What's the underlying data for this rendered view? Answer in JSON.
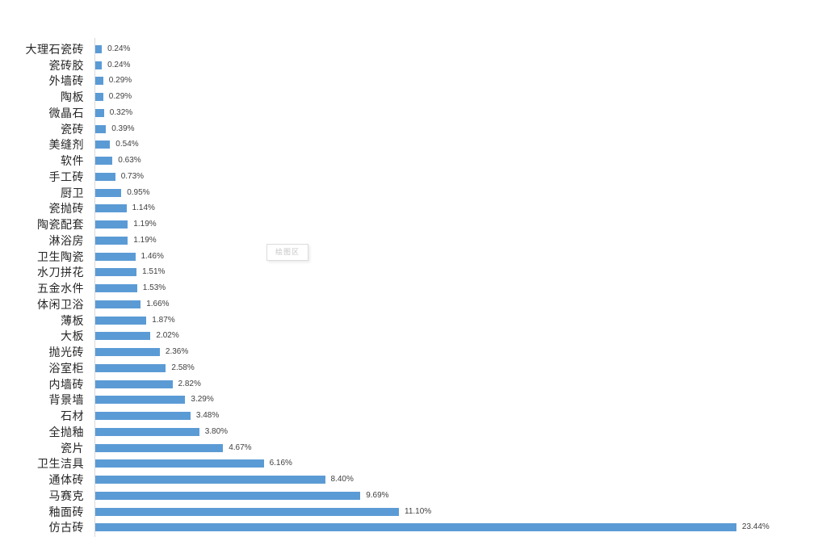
{
  "tooltip": {
    "text": "绘图区"
  },
  "colors": {
    "bar": "#5B9BD5",
    "axis_line": "#d9d9d9",
    "category_label": "#262626",
    "value_label": "#404040",
    "tooltip_text": "#c6c6c6"
  },
  "chart_data": {
    "type": "bar",
    "orientation": "horizontal",
    "title": "",
    "xlabel": "",
    "ylabel": "",
    "grid": false,
    "legend": false,
    "axis_max_percent": 23.44,
    "categories_top_to_bottom": [
      "大理石瓷砖",
      "瓷砖胶",
      "外墙砖",
      "陶板",
      "微晶石",
      "瓷砖",
      "美缝剂",
      "软件",
      "手工砖",
      "厨卫",
      "瓷抛砖",
      "陶瓷配套",
      "淋浴房",
      "卫生陶瓷",
      "水刀拼花",
      "五金水件",
      "体闲卫浴",
      "薄板",
      "大板",
      "抛光砖",
      "浴室柜",
      "内墙砖",
      "背景墙",
      "石材",
      "全抛釉",
      "瓷片",
      "卫生洁具",
      "通体砖",
      "马赛克",
      "釉面砖",
      "仿古砖"
    ],
    "values": [
      0.24,
      0.24,
      0.29,
      0.29,
      0.32,
      0.39,
      0.54,
      0.63,
      0.73,
      0.95,
      1.14,
      1.19,
      1.19,
      1.46,
      1.51,
      1.53,
      1.66,
      1.87,
      2.02,
      2.36,
      2.58,
      2.82,
      3.29,
      3.48,
      3.8,
      4.67,
      6.16,
      8.4,
      9.69,
      11.1,
      23.44
    ],
    "value_labels": [
      "0.24%",
      "0.24%",
      "0.29%",
      "0.29%",
      "0.32%",
      "0.39%",
      "0.54%",
      "0.63%",
      "0.73%",
      "0.95%",
      "1.14%",
      "1.19%",
      "1.19%",
      "1.46%",
      "1.51%",
      "1.53%",
      "1.66%",
      "1.87%",
      "2.02%",
      "2.36%",
      "2.58%",
      "2.82%",
      "3.29%",
      "3.48%",
      "3.80%",
      "4.67%",
      "6.16%",
      "8.40%",
      "9.69%",
      "11.10%",
      "23.44%"
    ]
  }
}
